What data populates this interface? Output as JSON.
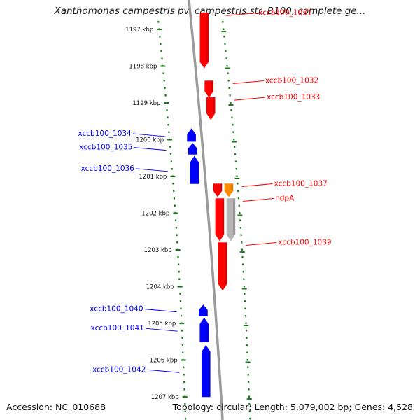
{
  "title": "Xanthomonas campestris pv. campestris str. B100, complete ge...",
  "footer": {
    "accession": "Accession: NC_010688",
    "topology": "Topology: circular; Length: 5,079,002 bp; Genes: 4,528"
  },
  "colors": {
    "forward_gene": "#ff0000",
    "reverse_gene": "#0000ff",
    "orange_gene": "#ff8c00",
    "grey_gene": "#b4b4b4",
    "axis": "#808080",
    "ticks": "#1a7a1a"
  },
  "ticks": [
    {
      "kbp": 1197,
      "label": "1197 kbp"
    },
    {
      "kbp": 1198,
      "label": "1198 kbp"
    },
    {
      "kbp": 1199,
      "label": "1199 kbp"
    },
    {
      "kbp": 1200,
      "label": "1200 kbp"
    },
    {
      "kbp": 1201,
      "label": "1201 kbp"
    },
    {
      "kbp": 1202,
      "label": "1202 kbp"
    },
    {
      "kbp": 1203,
      "label": "1203 kbp"
    },
    {
      "kbp": 1204,
      "label": "1204 kbp"
    },
    {
      "kbp": 1205,
      "label": "1205 kbp"
    },
    {
      "kbp": 1206,
      "label": "1206 kbp"
    },
    {
      "kbp": 1207,
      "label": "1207 kbp"
    }
  ],
  "genes": [
    {
      "label": "xccb100_1031",
      "strand": "+",
      "start": 1196.55,
      "end": 1198.05,
      "color": "red"
    },
    {
      "label": "xccb100_1032",
      "strand": "+",
      "start": 1198.4,
      "end": 1198.85,
      "color": "red"
    },
    {
      "label": "xccb100_1033",
      "strand": "+",
      "start": 1198.85,
      "end": 1199.45,
      "color": "red"
    },
    {
      "label": "xccb100_1034",
      "strand": "-",
      "start": 1199.7,
      "end": 1200.05,
      "color": "blue"
    },
    {
      "label": "xccb100_1035",
      "strand": "-",
      "start": 1200.1,
      "end": 1200.4,
      "color": "blue"
    },
    {
      "label": "xccb100_1036",
      "strand": "-",
      "start": 1200.45,
      "end": 1201.2,
      "color": "blue"
    },
    {
      "label": "xccb100_1037",
      "strand": "+",
      "start": 1201.2,
      "end": 1201.55,
      "color": "red"
    },
    {
      "label": "",
      "strand": "+",
      "start": 1201.2,
      "end": 1201.55,
      "color": "orange"
    },
    {
      "label": "ndpA",
      "strand": "+",
      "start": 1201.6,
      "end": 1202.75,
      "color": "red"
    },
    {
      "label": "",
      "strand": "+",
      "start": 1201.6,
      "end": 1202.75,
      "color": "grey"
    },
    {
      "label": "xccb100_1039",
      "strand": "+",
      "start": 1202.8,
      "end": 1204.1,
      "color": "red"
    },
    {
      "label": "xccb100_1040",
      "strand": "-",
      "start": 1204.5,
      "end": 1204.8,
      "color": "blue"
    },
    {
      "label": "xccb100_1041",
      "strand": "-",
      "start": 1204.85,
      "end": 1205.5,
      "color": "blue"
    },
    {
      "label": "xccb100_1042",
      "strand": "-",
      "start": 1205.6,
      "end": 1207.0,
      "color": "blue"
    }
  ]
}
